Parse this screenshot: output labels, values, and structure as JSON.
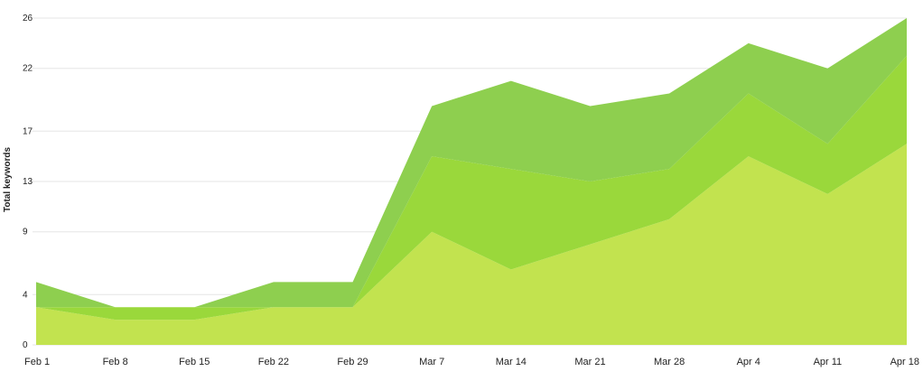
{
  "chart_data": {
    "type": "area",
    "stacked": true,
    "title": "",
    "xlabel": "",
    "ylabel": "Total keywords",
    "categories": [
      "Feb 1",
      "Feb 8",
      "Feb 15",
      "Feb 22",
      "Feb 29",
      "Mar 7",
      "Mar 14",
      "Mar 21",
      "Mar 28",
      "Apr 4",
      "Apr 11",
      "Apr 18"
    ],
    "y_ticks": [
      0,
      4,
      9,
      13,
      17,
      22,
      26
    ],
    "ylim": [
      0,
      26
    ],
    "grid": true,
    "legend": "none",
    "series": [
      {
        "values": [
          3,
          2,
          2,
          3,
          3,
          9,
          6,
          8,
          10,
          15,
          12,
          16
        ],
        "color": "#c2e34f"
      },
      {
        "values": [
          0,
          1,
          1,
          0,
          0,
          6,
          8,
          5,
          4,
          5,
          4,
          7
        ],
        "color": "#9ad83b"
      },
      {
        "values": [
          2,
          0,
          0,
          2,
          2,
          4,
          7,
          6,
          6,
          4,
          6,
          3
        ],
        "color": "#8ecf4f"
      }
    ]
  }
}
